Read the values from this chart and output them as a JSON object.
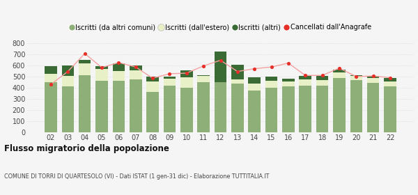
{
  "years": [
    "02",
    "03",
    "04",
    "05",
    "06",
    "07",
    "08",
    "09",
    "10",
    "11",
    "12",
    "13",
    "14",
    "15",
    "16",
    "17",
    "18",
    "19",
    "20",
    "21",
    "22"
  ],
  "iscritti_comuni": [
    450,
    410,
    510,
    465,
    465,
    475,
    362,
    420,
    398,
    450,
    450,
    435,
    378,
    400,
    415,
    420,
    418,
    490,
    468,
    445,
    415
  ],
  "iscritti_estero": [
    75,
    95,
    110,
    100,
    82,
    82,
    95,
    60,
    95,
    55,
    0,
    40,
    62,
    62,
    40,
    55,
    52,
    45,
    35,
    42,
    42
  ],
  "iscritti_altri": [
    65,
    95,
    30,
    28,
    72,
    42,
    42,
    18,
    65,
    8,
    270,
    128,
    55,
    38,
    25,
    28,
    38,
    28,
    10,
    18,
    28
  ],
  "cancellati": [
    430,
    545,
    705,
    580,
    625,
    585,
    485,
    525,
    530,
    595,
    645,
    545,
    570,
    585,
    620,
    510,
    510,
    575,
    500,
    505,
    490
  ],
  "color_comuni": "#8faf78",
  "color_estero": "#e8f0c8",
  "color_altri": "#3a6b35",
  "color_cancellati": "#e8302a",
  "color_line": "#f5a0a0",
  "bg_color": "#f5f5f5",
  "grid_color": "#d8d8d8",
  "ylim": [
    0,
    800
  ],
  "yticks": [
    0,
    100,
    200,
    300,
    400,
    500,
    600,
    700,
    800
  ],
  "title": "Flusso migratorio della popolazione",
  "subtitle": "COMUNE DI TORRI DI QUARTESOLO (VI) - Dati ISTAT (1 gen-31 dic) - Elaborazione TUTTITALIA.IT",
  "legend_labels": [
    "Iscritti (da altri comuni)",
    "Iscritti (dall'estero)",
    "Iscritti (altri)",
    "Cancellati dall'Anagrafe"
  ]
}
